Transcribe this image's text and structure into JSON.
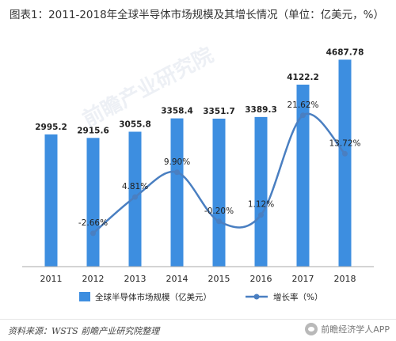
{
  "header": {
    "title": "图表1：2011-2018年全球半导体市场规模及其增长情况（单位：亿美元，%）"
  },
  "chart_data": {
    "type": "bar",
    "categories": [
      "2011",
      "2012",
      "2013",
      "2014",
      "2015",
      "2016",
      "2017",
      "2018"
    ],
    "series": [
      {
        "name": "全球半导体市场规模（亿美元）",
        "type": "bar",
        "values": [
          2995.2,
          2915.6,
          3055.8,
          3358.4,
          3351.7,
          3389.3,
          4122.2,
          4687.78
        ],
        "labels": [
          "2995.2",
          "2915.6",
          "3055.8",
          "3358.4",
          "3351.7",
          "3389.3",
          "4122.2",
          "4687.78"
        ]
      },
      {
        "name": "增长率（%）",
        "type": "line",
        "values": [
          null,
          -2.66,
          4.81,
          9.9,
          -0.2,
          1.12,
          21.62,
          13.72
        ],
        "labels": [
          "",
          "-2.66%",
          "4.81%",
          "9.90%",
          "-0.20%",
          "1.12%",
          "21.62%",
          "13.72%"
        ]
      }
    ],
    "bar_ylim": [
      0,
      5000
    ],
    "line_ylim": [
      -10,
      25
    ],
    "legend_position": "bottom",
    "grid": false
  },
  "colors": {
    "bar": "#3d8ee0",
    "line": "#4a7fc1",
    "axis": "#aaaaaa",
    "label": "#222222"
  },
  "footer": {
    "source": "资料来源：WSTS 前瞻产业研究院整理",
    "brand": "前瞻经济学人APP"
  },
  "watermark": {
    "text": "前瞻产业研究院"
  }
}
